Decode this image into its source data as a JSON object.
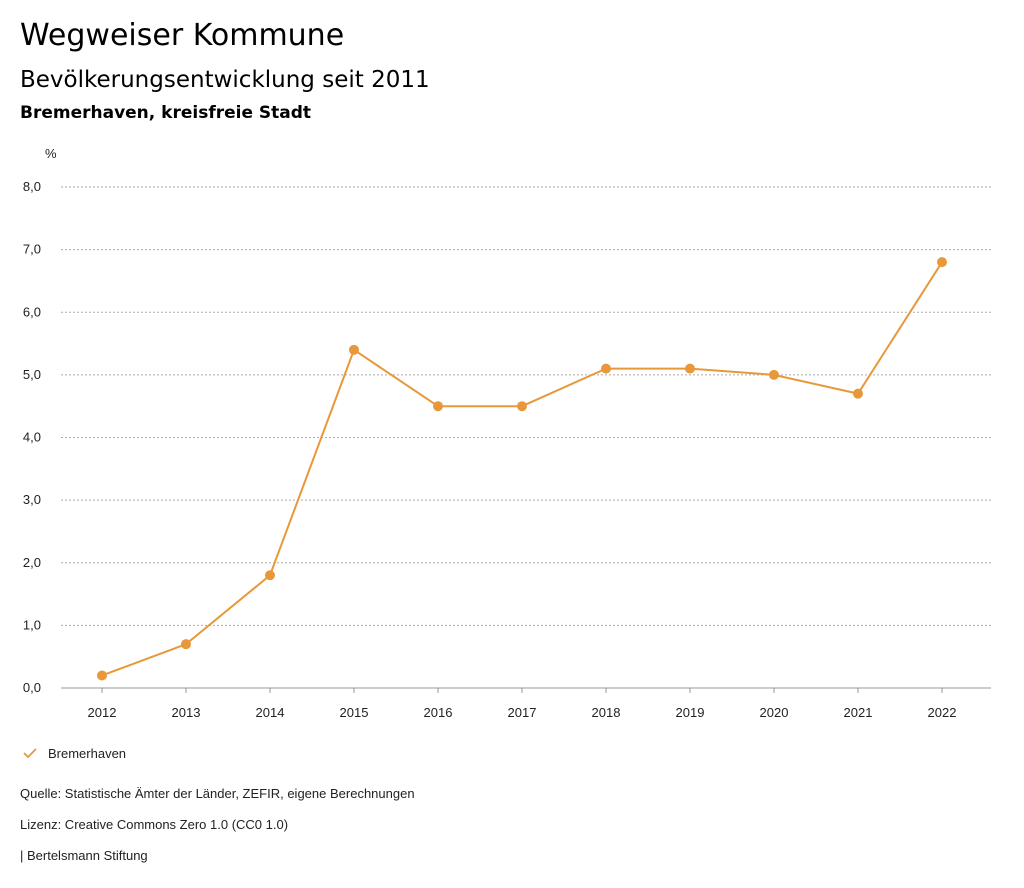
{
  "header": {
    "title": "Wegweiser Kommune",
    "subtitle": "Bevölkerungsentwicklung seit 2011",
    "region": "Bremerhaven, kreisfreie Stadt"
  },
  "legend": {
    "icon": "check-icon",
    "label": "Bremerhaven"
  },
  "footer": {
    "source": "Quelle: Statistische Ämter der Länder, ZEFIR, eigene Berechnungen",
    "license": "Lizenz: Creative Commons Zero 1.0 (CC0 1.0)",
    "publisher": "| Bertelsmann Stiftung"
  },
  "colors": {
    "series": "#E8983A",
    "grid": "#aaaaaa"
  },
  "chart_data": {
    "type": "line",
    "title": "Bevölkerungsentwicklung seit 2011",
    "ylabel": "%",
    "xlabel": "",
    "ylim": [
      0,
      8
    ],
    "yticks": [
      "0,0",
      "1,0",
      "2,0",
      "3,0",
      "4,0",
      "5,0",
      "6,0",
      "7,0",
      "8,0"
    ],
    "grid": true,
    "legend_position": "bottom-left",
    "categories": [
      "2012",
      "2013",
      "2014",
      "2015",
      "2016",
      "2017",
      "2018",
      "2019",
      "2020",
      "2021",
      "2022"
    ],
    "series": [
      {
        "name": "Bremerhaven",
        "values": [
          0.2,
          0.7,
          1.8,
          5.4,
          4.5,
          4.5,
          5.1,
          5.1,
          5.0,
          4.7,
          6.8
        ]
      }
    ]
  }
}
